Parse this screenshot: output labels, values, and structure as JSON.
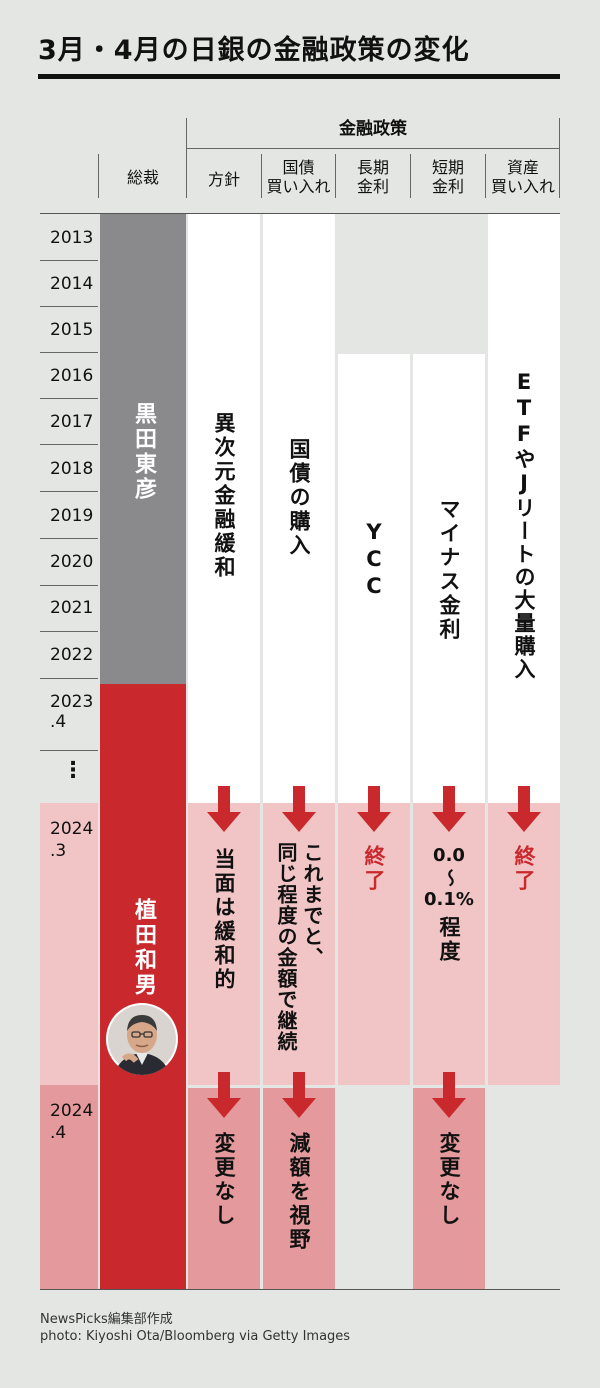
{
  "title": "3月・4月の日銀の金融政策の変化",
  "header": {
    "group_label": "金融政策",
    "governor_label": "総裁",
    "columns": [
      {
        "line1": "方針",
        "line2": ""
      },
      {
        "line1": "国債",
        "line2": "買い入れ"
      },
      {
        "line1": "長期",
        "line2": "金利"
      },
      {
        "line1": "短期",
        "line2": "金利"
      },
      {
        "line1": "資産",
        "line2": "買い入れ"
      }
    ]
  },
  "years": [
    {
      "line1": "2013",
      "line2": ""
    },
    {
      "line1": "2014",
      "line2": ""
    },
    {
      "line1": "2015",
      "line2": ""
    },
    {
      "line1": "2016",
      "line2": ""
    },
    {
      "line1": "2017",
      "line2": ""
    },
    {
      "line1": "2018",
      "line2": ""
    },
    {
      "line1": "2019",
      "line2": ""
    },
    {
      "line1": "2020",
      "line2": ""
    },
    {
      "line1": "2021",
      "line2": ""
    },
    {
      "line1": "2022",
      "line2": ""
    },
    {
      "line1": "2023",
      "line2": ".4"
    },
    {
      "line1": "⋮",
      "line2": ""
    },
    {
      "line1": "2024",
      "line2": ".3"
    },
    {
      "line1": "2024",
      "line2": ".4"
    }
  ],
  "governors": {
    "kuroda": "黒田東彦",
    "ueda": "植田和男"
  },
  "policies_before": {
    "policy": "異次元金融緩和",
    "jgb": "国債の購入",
    "long_rate": "YCC",
    "short_rate": "マイナス金利",
    "assets": "ETFやJリートの大量購入"
  },
  "march_2024": {
    "policy": "当面は緩和的",
    "jgb_line1": "これまでと、",
    "jgb_line2": "同じ程度の金額で継続",
    "long_rate": "終了",
    "short_rate_line1": "0.0",
    "short_rate_line2": "〜",
    "short_rate_line3": "0.1%",
    "short_rate_line4": "程度",
    "assets": "終了"
  },
  "april_2024": {
    "policy": "変更なし",
    "jgb": "減額を視野",
    "short_rate": "変更なし"
  },
  "credits": {
    "line1": "NewsPicks編集部作成",
    "line2": "photo: Kiyoshi Ota/Bloomberg via Getty Images"
  },
  "colors": {
    "background": "#e4e6e3",
    "kuroda_gray": "#8a8a8d",
    "ueda_red": "#c9282d",
    "march_pink": "#f1c4c5",
    "april_pink": "#e49a9c",
    "arrow_red": "#c9282d"
  }
}
